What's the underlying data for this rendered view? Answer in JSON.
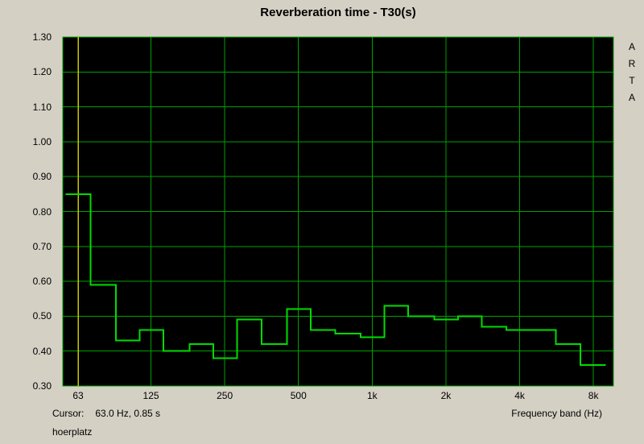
{
  "header": {
    "title": "Reverberation time - T30(s)"
  },
  "branding": {
    "letters": [
      "A",
      "R",
      "T",
      "A"
    ]
  },
  "footer": {
    "cursor_label": "Cursor:",
    "cursor_value": "63.0 Hz, 0.85 s",
    "x_axis_label": "Frequency band (Hz)",
    "annotation": "hoerplatz"
  },
  "chart_data": {
    "type": "line",
    "subtype": "third-octave-step",
    "title": "Reverberation time - T30(s)",
    "xlabel": "Frequency band (Hz)",
    "ylabel": "",
    "x_scale": "log",
    "ylim": [
      0.3,
      1.3
    ],
    "y_ticks": [
      1.3,
      1.2,
      1.1,
      1.0,
      0.9,
      0.8,
      0.7,
      0.6,
      0.5,
      0.4,
      0.3
    ],
    "x_tick_freqs": [
      63,
      125,
      250,
      500,
      1000,
      2000,
      4000,
      8000
    ],
    "x_tick_labels": [
      "63",
      "125",
      "250",
      "500",
      "1k",
      "2k",
      "4k",
      "8k"
    ],
    "bands_hz": [
      63,
      80,
      100,
      125,
      160,
      200,
      250,
      315,
      400,
      500,
      630,
      800,
      1000,
      1250,
      1600,
      2000,
      2500,
      3150,
      4000,
      5000,
      6300,
      8000
    ],
    "values_s": [
      0.85,
      0.59,
      0.43,
      0.46,
      0.4,
      0.42,
      0.38,
      0.49,
      0.42,
      0.52,
      0.46,
      0.45,
      0.44,
      0.53,
      0.5,
      0.49,
      0.5,
      0.47,
      0.46,
      0.46,
      0.42,
      0.36
    ],
    "cursor": {
      "freq_hz": 63.0,
      "value_s": 0.85
    },
    "grid": true,
    "legend": false,
    "colors": {
      "page_bg": "#d4d0c4",
      "plot_bg": "#000000",
      "grid": "#00a000",
      "curve": "#00dc00",
      "cursor_line": "#c8c800",
      "text": "#000000"
    }
  }
}
